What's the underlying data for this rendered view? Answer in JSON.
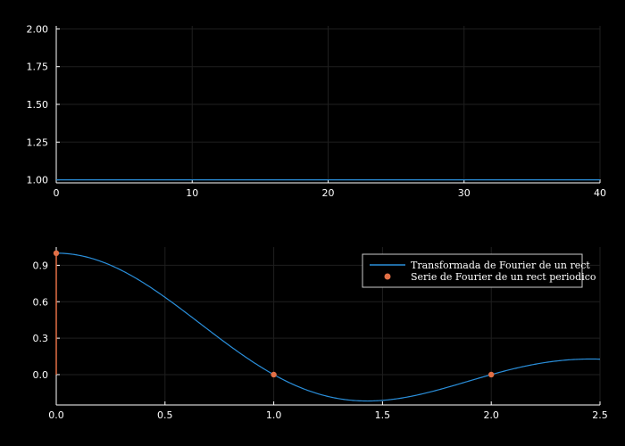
{
  "colors": {
    "background": "#000000",
    "axis": "#ffffff",
    "grid": "#1f1f1f",
    "series_line": "#2a8fdb",
    "series_points": "#e26f46",
    "text": "#ffffff"
  },
  "chart_data": [
    {
      "type": "line",
      "title": "",
      "xlabel": "",
      "ylabel": "",
      "xlim": [
        0,
        40
      ],
      "ylim": [
        0.98,
        2.02
      ],
      "xticks": [
        0,
        10,
        20,
        30,
        40
      ],
      "xtick_labels": [
        "0",
        "10",
        "20",
        "30",
        "40"
      ],
      "yticks": [
        1.0,
        1.25,
        1.5,
        1.75,
        2.0
      ],
      "ytick_labels": [
        "1.00",
        "1.25",
        "1.50",
        "1.75",
        "2.00"
      ],
      "grid": true,
      "series": [
        {
          "x": [
            0,
            40
          ],
          "y": [
            1.0,
            1.0
          ]
        }
      ]
    },
    {
      "type": "line",
      "title": "",
      "xlabel": "",
      "ylabel": "",
      "xlim": [
        0,
        2.5
      ],
      "ylim": [
        -0.25,
        1.05
      ],
      "xticks": [
        0,
        0.5,
        1.0,
        1.5,
        2.0,
        2.5
      ],
      "xtick_labels": [
        "0.0",
        "0.5",
        "1.0",
        "1.5",
        "2.0",
        "2.5"
      ],
      "yticks": [
        0.0,
        0.3,
        0.6,
        0.9
      ],
      "ytick_labels": [
        "0.0",
        "0.3",
        "0.6",
        "0.9"
      ],
      "grid": true,
      "legend": {
        "position": "top-right"
      },
      "series": [
        {
          "name": "Transformada de Fourier de un rect",
          "kind": "line",
          "function": "sinc",
          "x_range": [
            0,
            2.5
          ]
        },
        {
          "name": "Serie de Fourier de un rect periodico",
          "kind": "scatter_stem",
          "x": [
            0,
            1,
            2
          ],
          "y": [
            1.0,
            0.0,
            0.0
          ]
        }
      ]
    }
  ]
}
